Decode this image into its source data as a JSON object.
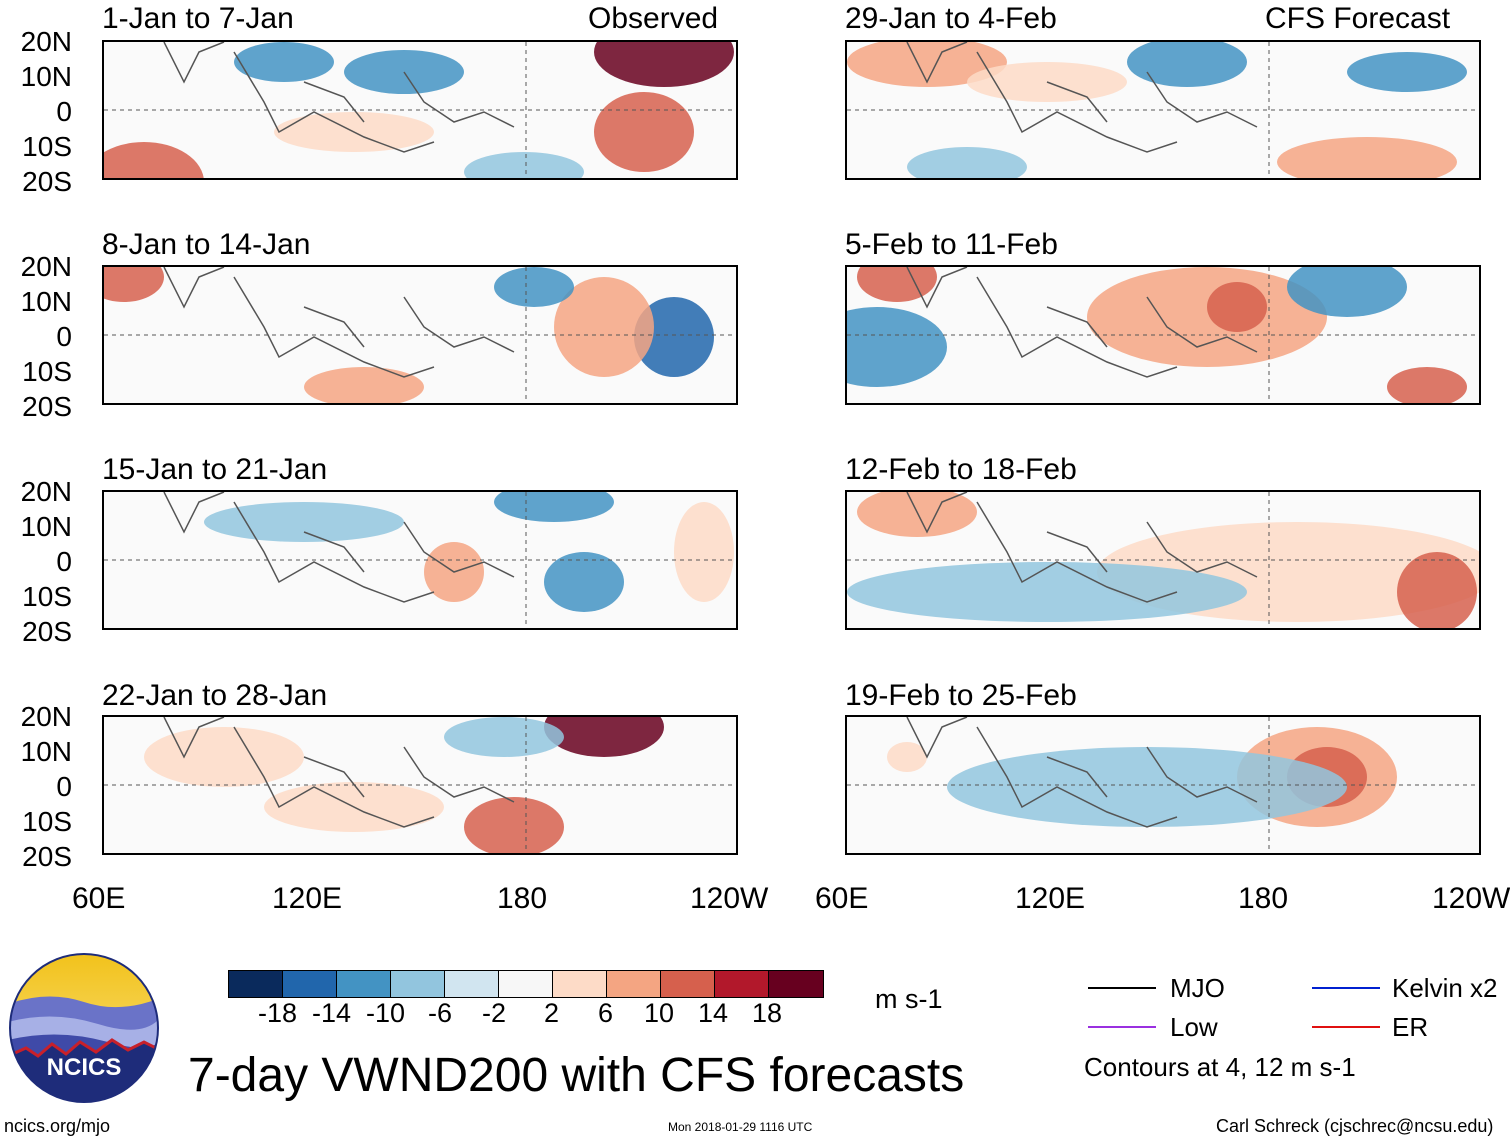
{
  "panel_titles": {
    "p1": "1-Jan to 7-Jan",
    "p2": "8-Jan to 14-Jan",
    "p3": "15-Jan to 21-Jan",
    "p4": "22-Jan to 28-Jan",
    "p5": "29-Jan to 4-Feb",
    "p6": "5-Feb to 11-Feb",
    "p7": "12-Feb to 18-Feb",
    "p8": "19-Feb to 25-Feb"
  },
  "column_labels": {
    "observed": "Observed",
    "forecast": "CFS Forecast"
  },
  "lat_labels": [
    "20N",
    "10N",
    "0",
    "10S",
    "20S"
  ],
  "lon_labels": [
    "60E",
    "120E",
    "180",
    "120W"
  ],
  "colorbar": {
    "ticks": [
      "-18",
      "-14",
      "-10",
      "-6",
      "-2",
      "2",
      "6",
      "10",
      "14",
      "18"
    ],
    "colors": [
      "#0a2a5c",
      "#2166ac",
      "#4393c3",
      "#92c5de",
      "#d1e5f0",
      "#f7f7f7",
      "#fddbc7",
      "#f4a582",
      "#d6604d",
      "#b2182b",
      "#67001f"
    ],
    "units": "m s-1"
  },
  "legend": {
    "mjo": "MJO",
    "kelvin": "Kelvin x2",
    "low": "Low",
    "er": "ER",
    "contours_note": "Contours at 4, 12 m s-1",
    "colors": {
      "mjo": "#000000",
      "kelvin": "#0020d0",
      "low": "#9a30e0",
      "er": "#e01010"
    }
  },
  "main_title": "7-day VWND200 with CFS forecasts",
  "logo_text": "NCICS",
  "footer": {
    "url": "ncics.org/mjo",
    "timestamp": "Mon 2018-01-29 1116 UTC",
    "credit": "Carl Schreck (cjschrec@ncsu.edu)"
  }
}
